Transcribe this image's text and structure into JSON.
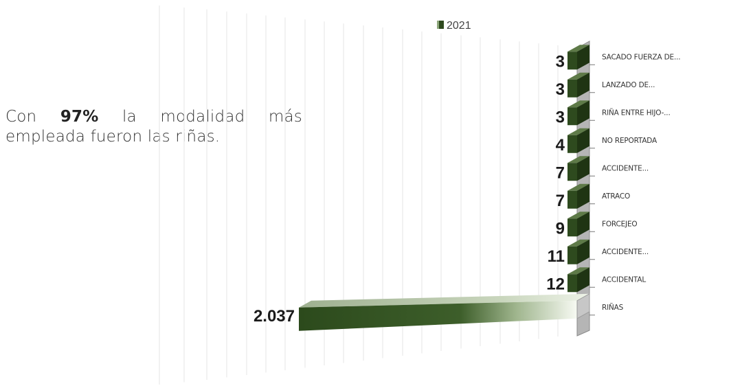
{
  "caption": {
    "prefix": "Con ",
    "highlight": "97%",
    "suffix": " la modalidad más empleada fueron las riñas."
  },
  "chart_data": {
    "type": "bar",
    "orientation": "horizontal",
    "style": "3d",
    "legend": {
      "position": "top",
      "entries": [
        "2021"
      ]
    },
    "categories": [
      "SACADO FUERZA DE...",
      "LANZADO DE...",
      "RIÑA ENTRE HIJO-...",
      "NO REPORTADA",
      "ACCIDENTE...",
      "ATRACO",
      "FORCEJEO",
      "ACCIDENTE...",
      "ACCIDENTAL",
      "RIÑAS"
    ],
    "series": [
      {
        "name": "2021",
        "values": [
          3,
          3,
          3,
          4,
          7,
          7,
          9,
          11,
          12,
          2037
        ],
        "value_labels": [
          "3",
          "3",
          "3",
          "4",
          "7",
          "7",
          "9",
          "11",
          "12",
          "2.037"
        ]
      }
    ],
    "grid": true,
    "colors": {
      "bar": "#2e4a1e",
      "bar_light": "#f4f8ef",
      "axis_wall": "#9a9a9a"
    }
  }
}
